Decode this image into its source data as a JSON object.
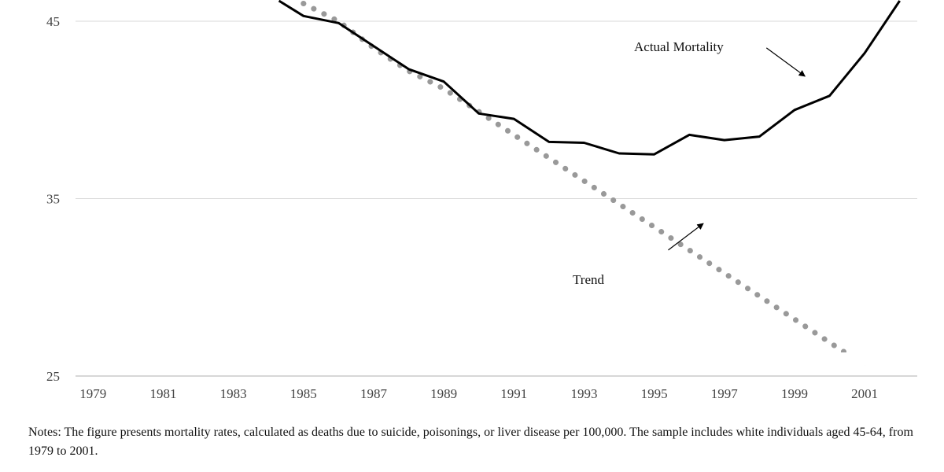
{
  "chart_data": {
    "type": "line",
    "x": [
      1985,
      1986,
      1987,
      1988,
      1989,
      1990,
      1991,
      1992,
      1993,
      1994,
      1995,
      1996,
      1997,
      1998,
      1999,
      2000,
      2001,
      2002
    ],
    "series": [
      {
        "name": "Actual Mortality",
        "style": "solid",
        "color": "#000000",
        "values": [
          45.3,
          44.9,
          43.6,
          42.3,
          41.6,
          39.8,
          39.5,
          38.2,
          38.15,
          37.55,
          37.5,
          38.6,
          38.3,
          38.5,
          40.0,
          40.8,
          43.2,
          46.5
        ],
        "lead_in": {
          "x": [
            1984.3
          ],
          "values": [
            46.4
          ]
        }
      },
      {
        "name": "Trend",
        "style": "dotted",
        "color": "#999999",
        "values": [
          46.0,
          45.0,
          43.5,
          42.2,
          41.2,
          39.9,
          38.6,
          37.3,
          36.0,
          34.7,
          33.4,
          32.1,
          30.8,
          29.5,
          28.2,
          26.9,
          25.6,
          24.3
        ]
      }
    ],
    "xticks": [
      "1979",
      "1981",
      "1983",
      "1985",
      "1987",
      "1989",
      "1991",
      "1993",
      "1995",
      "1997",
      "1999",
      "2001"
    ],
    "yticks": [
      "25",
      "35",
      "45"
    ],
    "xlim": [
      1978.5,
      2002.5
    ],
    "ylim": [
      25,
      46.2
    ],
    "grid": "horizontal",
    "annotations": [
      {
        "text": "Actual Mortality",
        "arrow_from": [
          1998.2,
          43.5
        ],
        "arrow_to": [
          1999.3,
          41.9
        ]
      },
      {
        "text": "Trend",
        "arrow_from": [
          1995.4,
          32.1
        ],
        "arrow_to": [
          1996.4,
          33.6
        ]
      }
    ],
    "title": "",
    "xlabel": "",
    "ylabel": ""
  },
  "notes": "Notes: The figure presents mortality rates, calculated as deaths due to suicide, poisonings, or liver disease per 100,000. The sample includes white individuals aged 45-64, from 1979 to 2001."
}
